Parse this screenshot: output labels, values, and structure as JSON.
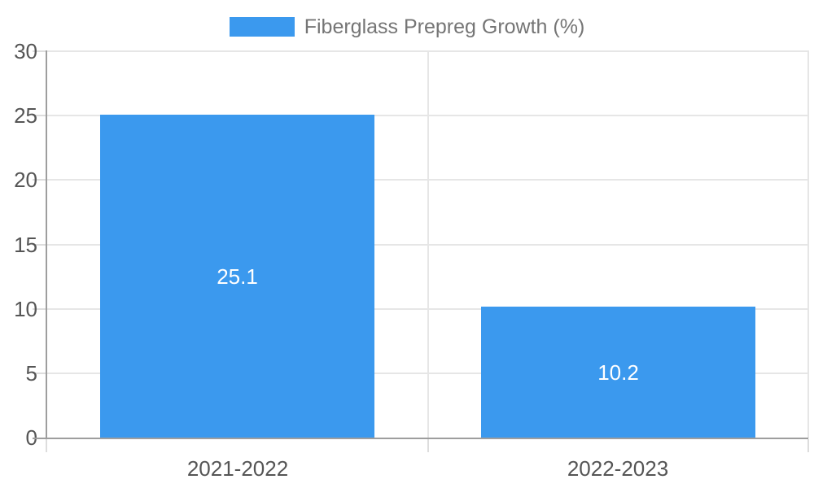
{
  "chart_data": {
    "type": "bar",
    "title": "Fiberglass Prepreg Growth (%)",
    "legend": {
      "position": "top",
      "label": "Fiberglass Prepreg Growth (%)"
    },
    "categories": [
      "2021-2022",
      "2022-2023"
    ],
    "values": [
      25.1,
      10.2
    ],
    "data_labels": [
      "25.1",
      "10.2"
    ],
    "xlabel": "",
    "ylabel": "",
    "ylim": [
      0,
      30
    ],
    "yticks": [
      0,
      5,
      10,
      15,
      20,
      25,
      30
    ],
    "grid": true,
    "legend_position": "top",
    "colors": {
      "bar": "#3B99EE",
      "grid": "#E6E6E6",
      "tick": "#DDDDDD",
      "axis": "#9E9E9E",
      "axis_label": "#555555",
      "legend_text": "#757575",
      "data_label": "#FFFFFF",
      "background": "#FFFFFF"
    }
  }
}
